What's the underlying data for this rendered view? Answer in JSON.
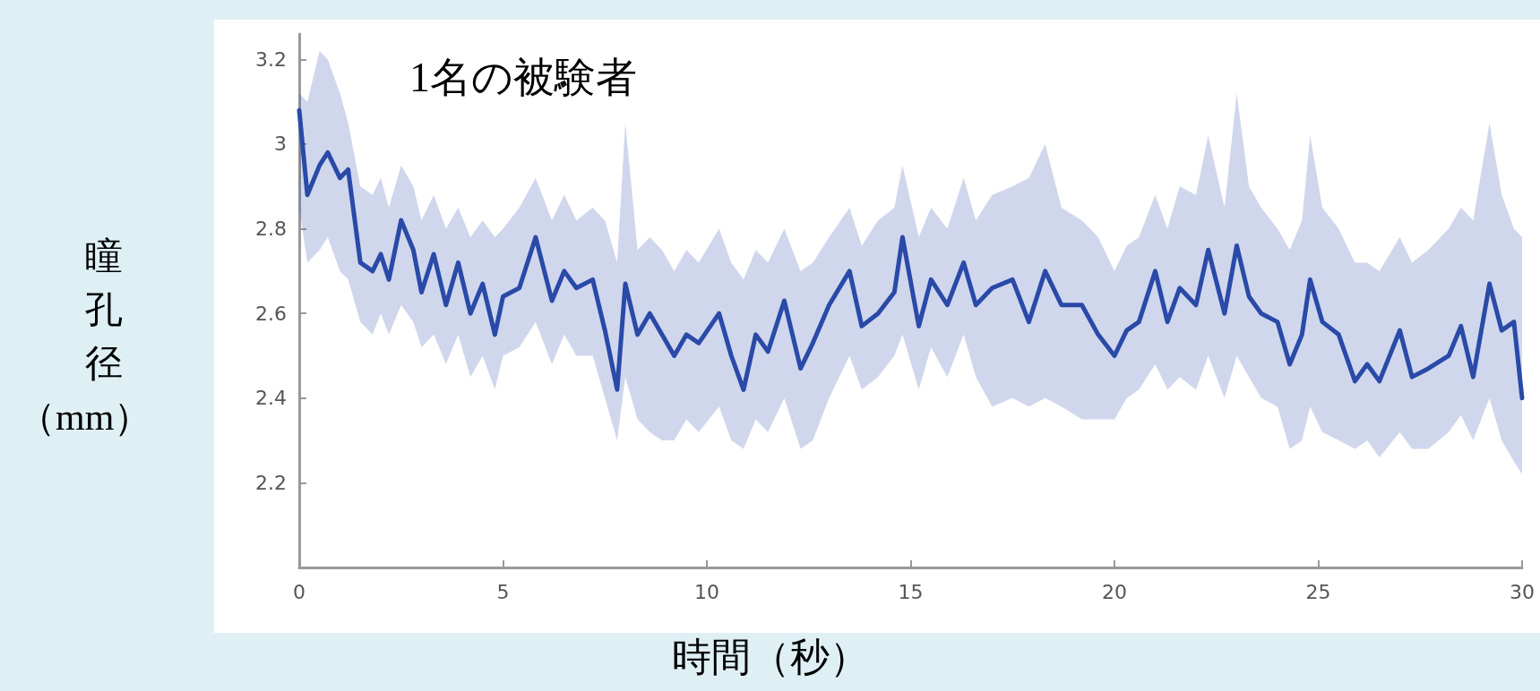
{
  "chart_data": {
    "type": "line",
    "title": "1名の被験者",
    "xlabel": "時間（秒）",
    "ylabel": "瞳孔径（mm）",
    "x": [
      0,
      0.2,
      0.5,
      0.7,
      1.0,
      1.2,
      1.5,
      1.8,
      2.0,
      2.2,
      2.5,
      2.8,
      3.0,
      3.3,
      3.6,
      3.9,
      4.2,
      4.5,
      4.8,
      5.0,
      5.4,
      5.8,
      6.2,
      6.5,
      6.8,
      7.2,
      7.5,
      7.8,
      8.0,
      8.3,
      8.6,
      8.9,
      9.2,
      9.5,
      9.8,
      10.3,
      10.6,
      10.9,
      11.2,
      11.5,
      11.9,
      12.3,
      12.6,
      13.0,
      13.5,
      13.8,
      14.2,
      14.6,
      14.8,
      15.2,
      15.5,
      15.9,
      16.3,
      16.6,
      17.0,
      17.5,
      17.9,
      18.3,
      18.7,
      19.2,
      19.6,
      20.0,
      20.3,
      20.6,
      21.0,
      21.3,
      21.6,
      22.0,
      22.3,
      22.7,
      23.0,
      23.3,
      23.6,
      24.0,
      24.3,
      24.6,
      24.8,
      25.1,
      25.5,
      25.9,
      26.2,
      26.5,
      27.0,
      27.3,
      27.7,
      28.2,
      28.5,
      28.8,
      29.2,
      29.5,
      29.8,
      30.0
    ],
    "series": [
      {
        "color": "#2a4aa8",
        "values": [
          3.08,
          2.88,
          2.95,
          2.98,
          2.92,
          2.94,
          2.72,
          2.7,
          2.74,
          2.68,
          2.82,
          2.75,
          2.65,
          2.74,
          2.62,
          2.72,
          2.6,
          2.67,
          2.55,
          2.64,
          2.66,
          2.78,
          2.63,
          2.7,
          2.66,
          2.68,
          2.56,
          2.42,
          2.67,
          2.55,
          2.6,
          2.55,
          2.5,
          2.55,
          2.53,
          2.6,
          2.5,
          2.42,
          2.55,
          2.51,
          2.63,
          2.47,
          2.53,
          2.62,
          2.7,
          2.57,
          2.6,
          2.65,
          2.78,
          2.57,
          2.68,
          2.62,
          2.72,
          2.62,
          2.66,
          2.68,
          2.58,
          2.7,
          2.62,
          2.62,
          2.55,
          2.5,
          2.56,
          2.58,
          2.7,
          2.58,
          2.66,
          2.62,
          2.75,
          2.6,
          2.76,
          2.64,
          2.6,
          2.58,
          2.48,
          2.55,
          2.68,
          2.58,
          2.55,
          2.44,
          2.48,
          2.44,
          2.56,
          2.45,
          2.47,
          2.5,
          2.57,
          2.45,
          2.67,
          2.56,
          2.58,
          2.4
        ],
        "lower": [
          2.85,
          2.72,
          2.75,
          2.78,
          2.7,
          2.68,
          2.58,
          2.55,
          2.6,
          2.55,
          2.62,
          2.58,
          2.52,
          2.55,
          2.48,
          2.55,
          2.45,
          2.5,
          2.42,
          2.5,
          2.52,
          2.58,
          2.48,
          2.55,
          2.5,
          2.5,
          2.4,
          2.3,
          2.45,
          2.35,
          2.32,
          2.3,
          2.3,
          2.35,
          2.32,
          2.38,
          2.3,
          2.28,
          2.35,
          2.32,
          2.4,
          2.28,
          2.3,
          2.4,
          2.5,
          2.42,
          2.45,
          2.5,
          2.55,
          2.42,
          2.52,
          2.45,
          2.55,
          2.45,
          2.38,
          2.4,
          2.38,
          2.4,
          2.38,
          2.35,
          2.35,
          2.35,
          2.4,
          2.42,
          2.48,
          2.42,
          2.45,
          2.42,
          2.5,
          2.4,
          2.5,
          2.45,
          2.4,
          2.38,
          2.28,
          2.3,
          2.38,
          2.32,
          2.3,
          2.28,
          2.3,
          2.26,
          2.32,
          2.28,
          2.28,
          2.32,
          2.36,
          2.3,
          2.4,
          2.3,
          2.25,
          2.22
        ],
        "upper": [
          3.12,
          3.1,
          3.22,
          3.2,
          3.12,
          3.05,
          2.9,
          2.88,
          2.92,
          2.85,
          2.95,
          2.9,
          2.82,
          2.88,
          2.8,
          2.85,
          2.78,
          2.82,
          2.78,
          2.8,
          2.85,
          2.92,
          2.82,
          2.88,
          2.82,
          2.85,
          2.82,
          2.72,
          3.05,
          2.75,
          2.78,
          2.75,
          2.7,
          2.75,
          2.72,
          2.8,
          2.72,
          2.68,
          2.75,
          2.72,
          2.8,
          2.7,
          2.72,
          2.78,
          2.85,
          2.76,
          2.82,
          2.85,
          2.95,
          2.78,
          2.85,
          2.8,
          2.92,
          2.82,
          2.88,
          2.9,
          2.92,
          3.0,
          2.85,
          2.82,
          2.78,
          2.7,
          2.76,
          2.78,
          2.88,
          2.8,
          2.9,
          2.88,
          3.02,
          2.85,
          3.12,
          2.9,
          2.85,
          2.8,
          2.75,
          2.82,
          3.02,
          2.85,
          2.8,
          2.72,
          2.72,
          2.7,
          2.78,
          2.72,
          2.75,
          2.8,
          2.85,
          2.82,
          3.05,
          2.88,
          2.8,
          2.78
        ]
      }
    ],
    "xlim": [
      0,
      30
    ],
    "xticks": [
      0,
      5,
      10,
      15,
      20,
      25,
      30
    ],
    "ylim": [
      2,
      3.26
    ],
    "yticks": [
      2.2,
      2.4,
      2.6,
      2.8,
      3,
      3.2
    ],
    "grid": false,
    "marker": "none",
    "line_style": "solid"
  }
}
